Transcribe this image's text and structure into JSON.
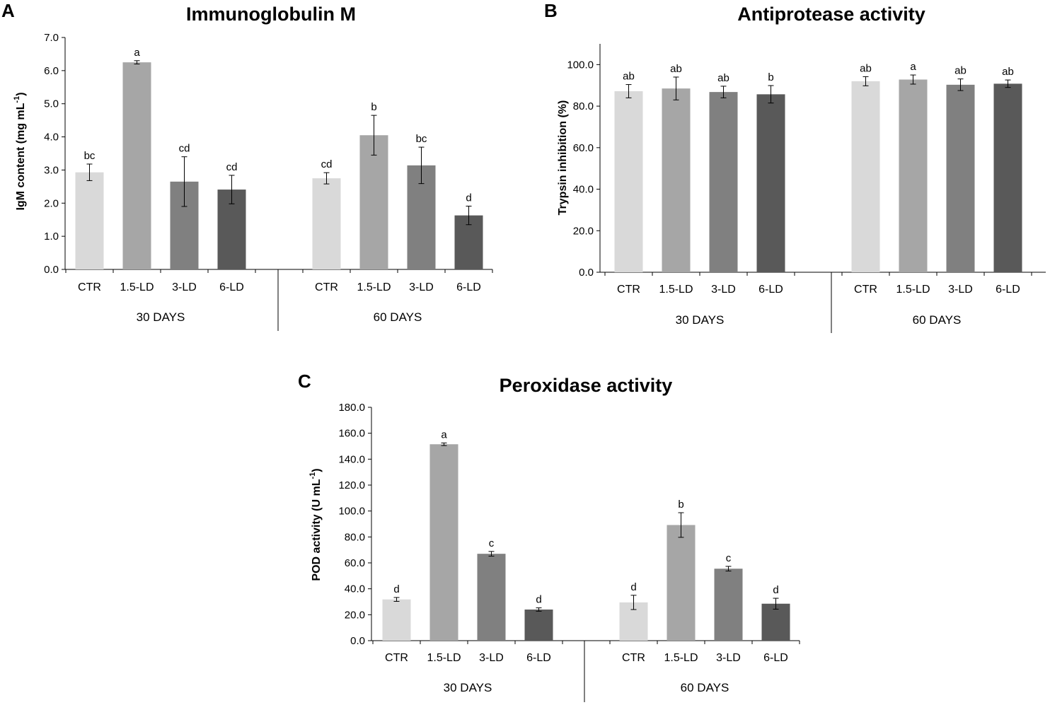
{
  "chart_data": [
    {
      "type": "bar",
      "panel_label": "A",
      "title": "Immunoglobulin M",
      "ylabel": "IgM content (mg mL",
      "ylabel_sup": "-1",
      "ylabel_close": ")",
      "ylim": [
        0,
        7
      ],
      "ytick_step": 1,
      "ytick_labels": [
        "0.0",
        "1.0",
        "2.0",
        "3.0",
        "4.0",
        "5.0",
        "6.0",
        "7.0"
      ],
      "groups": [
        {
          "name": "30 DAYS",
          "categories": [
            "CTR",
            "1.5-LD",
            "3-LD",
            "6-LD"
          ],
          "values": [
            2.93,
            6.25,
            2.65,
            2.41
          ],
          "errors": [
            0.25,
            0.05,
            0.75,
            0.43
          ],
          "letters": [
            "bc",
            "a",
            "cd",
            "cd"
          ]
        },
        {
          "name": "60 DAYS",
          "categories": [
            "CTR",
            "1.5-LD",
            "3-LD",
            "6-LD"
          ],
          "values": [
            2.75,
            4.05,
            3.14,
            1.63
          ],
          "errors": [
            0.17,
            0.6,
            0.55,
            0.28
          ],
          "letters": [
            "cd",
            "b",
            "bc",
            "d"
          ]
        }
      ],
      "bar_colors": [
        "#d9d9d9",
        "#a6a6a6",
        "#808080",
        "#595959"
      ],
      "grid": false,
      "legend": "none"
    },
    {
      "type": "bar",
      "panel_label": "B",
      "title": "Antiprotease activity",
      "ylabel": "Trypsin inhibition (%)",
      "ylabel_sup": "",
      "ylabel_close": "",
      "ylim": [
        0,
        110
      ],
      "ytick_step": 20,
      "ytick_labels": [
        "0.0",
        "20.0",
        "40.0",
        "60.0",
        "80.0",
        "100.0"
      ],
      "groups": [
        {
          "name": "30 DAYS",
          "categories": [
            "CTR",
            "1.5-LD",
            "3-LD",
            "6-LD"
          ],
          "values": [
            87.2,
            88.5,
            86.8,
            85.7
          ],
          "errors": [
            3.2,
            5.5,
            2.8,
            4.2
          ],
          "letters": [
            "ab",
            "ab",
            "ab",
            "b"
          ]
        },
        {
          "name": "60 DAYS",
          "categories": [
            "CTR",
            "1.5-LD",
            "3-LD",
            "6-LD"
          ],
          "values": [
            92.0,
            92.8,
            90.3,
            90.8
          ],
          "errors": [
            2.2,
            2.2,
            2.8,
            1.8
          ],
          "letters": [
            "ab",
            "a",
            "ab",
            "ab"
          ]
        }
      ],
      "bar_colors": [
        "#d9d9d9",
        "#a6a6a6",
        "#808080",
        "#595959"
      ],
      "grid": false,
      "legend": "none"
    },
    {
      "type": "bar",
      "panel_label": "C",
      "title": "Peroxidase activity",
      "ylabel": "POD activity (U mL",
      "ylabel_sup": "-1",
      "ylabel_close": ")",
      "ylim": [
        0,
        180
      ],
      "ytick_step": 20,
      "ytick_labels": [
        "0.0",
        "20.0",
        "40.0",
        "60.0",
        "80.0",
        "100.0",
        "120.0",
        "140.0",
        "160.0",
        "180.0"
      ],
      "groups": [
        {
          "name": "30 DAYS",
          "categories": [
            "CTR",
            "1.5-LD",
            "3-LD",
            "6-LD"
          ],
          "values": [
            31.8,
            151.5,
            67.0,
            24.0
          ],
          "errors": [
            1.5,
            1.0,
            1.8,
            1.3
          ],
          "letters": [
            "d",
            "a",
            "c",
            "d"
          ]
        },
        {
          "name": "60 DAYS",
          "categories": [
            "CTR",
            "1.5-LD",
            "3-LD",
            "6-LD"
          ],
          "values": [
            29.5,
            89.2,
            55.5,
            28.5
          ],
          "errors": [
            5.5,
            9.5,
            1.8,
            4.2
          ],
          "letters": [
            "d",
            "b",
            "c",
            "d"
          ]
        }
      ],
      "bar_colors": [
        "#d9d9d9",
        "#a6a6a6",
        "#808080",
        "#595959"
      ],
      "grid": false,
      "legend": "none"
    }
  ]
}
